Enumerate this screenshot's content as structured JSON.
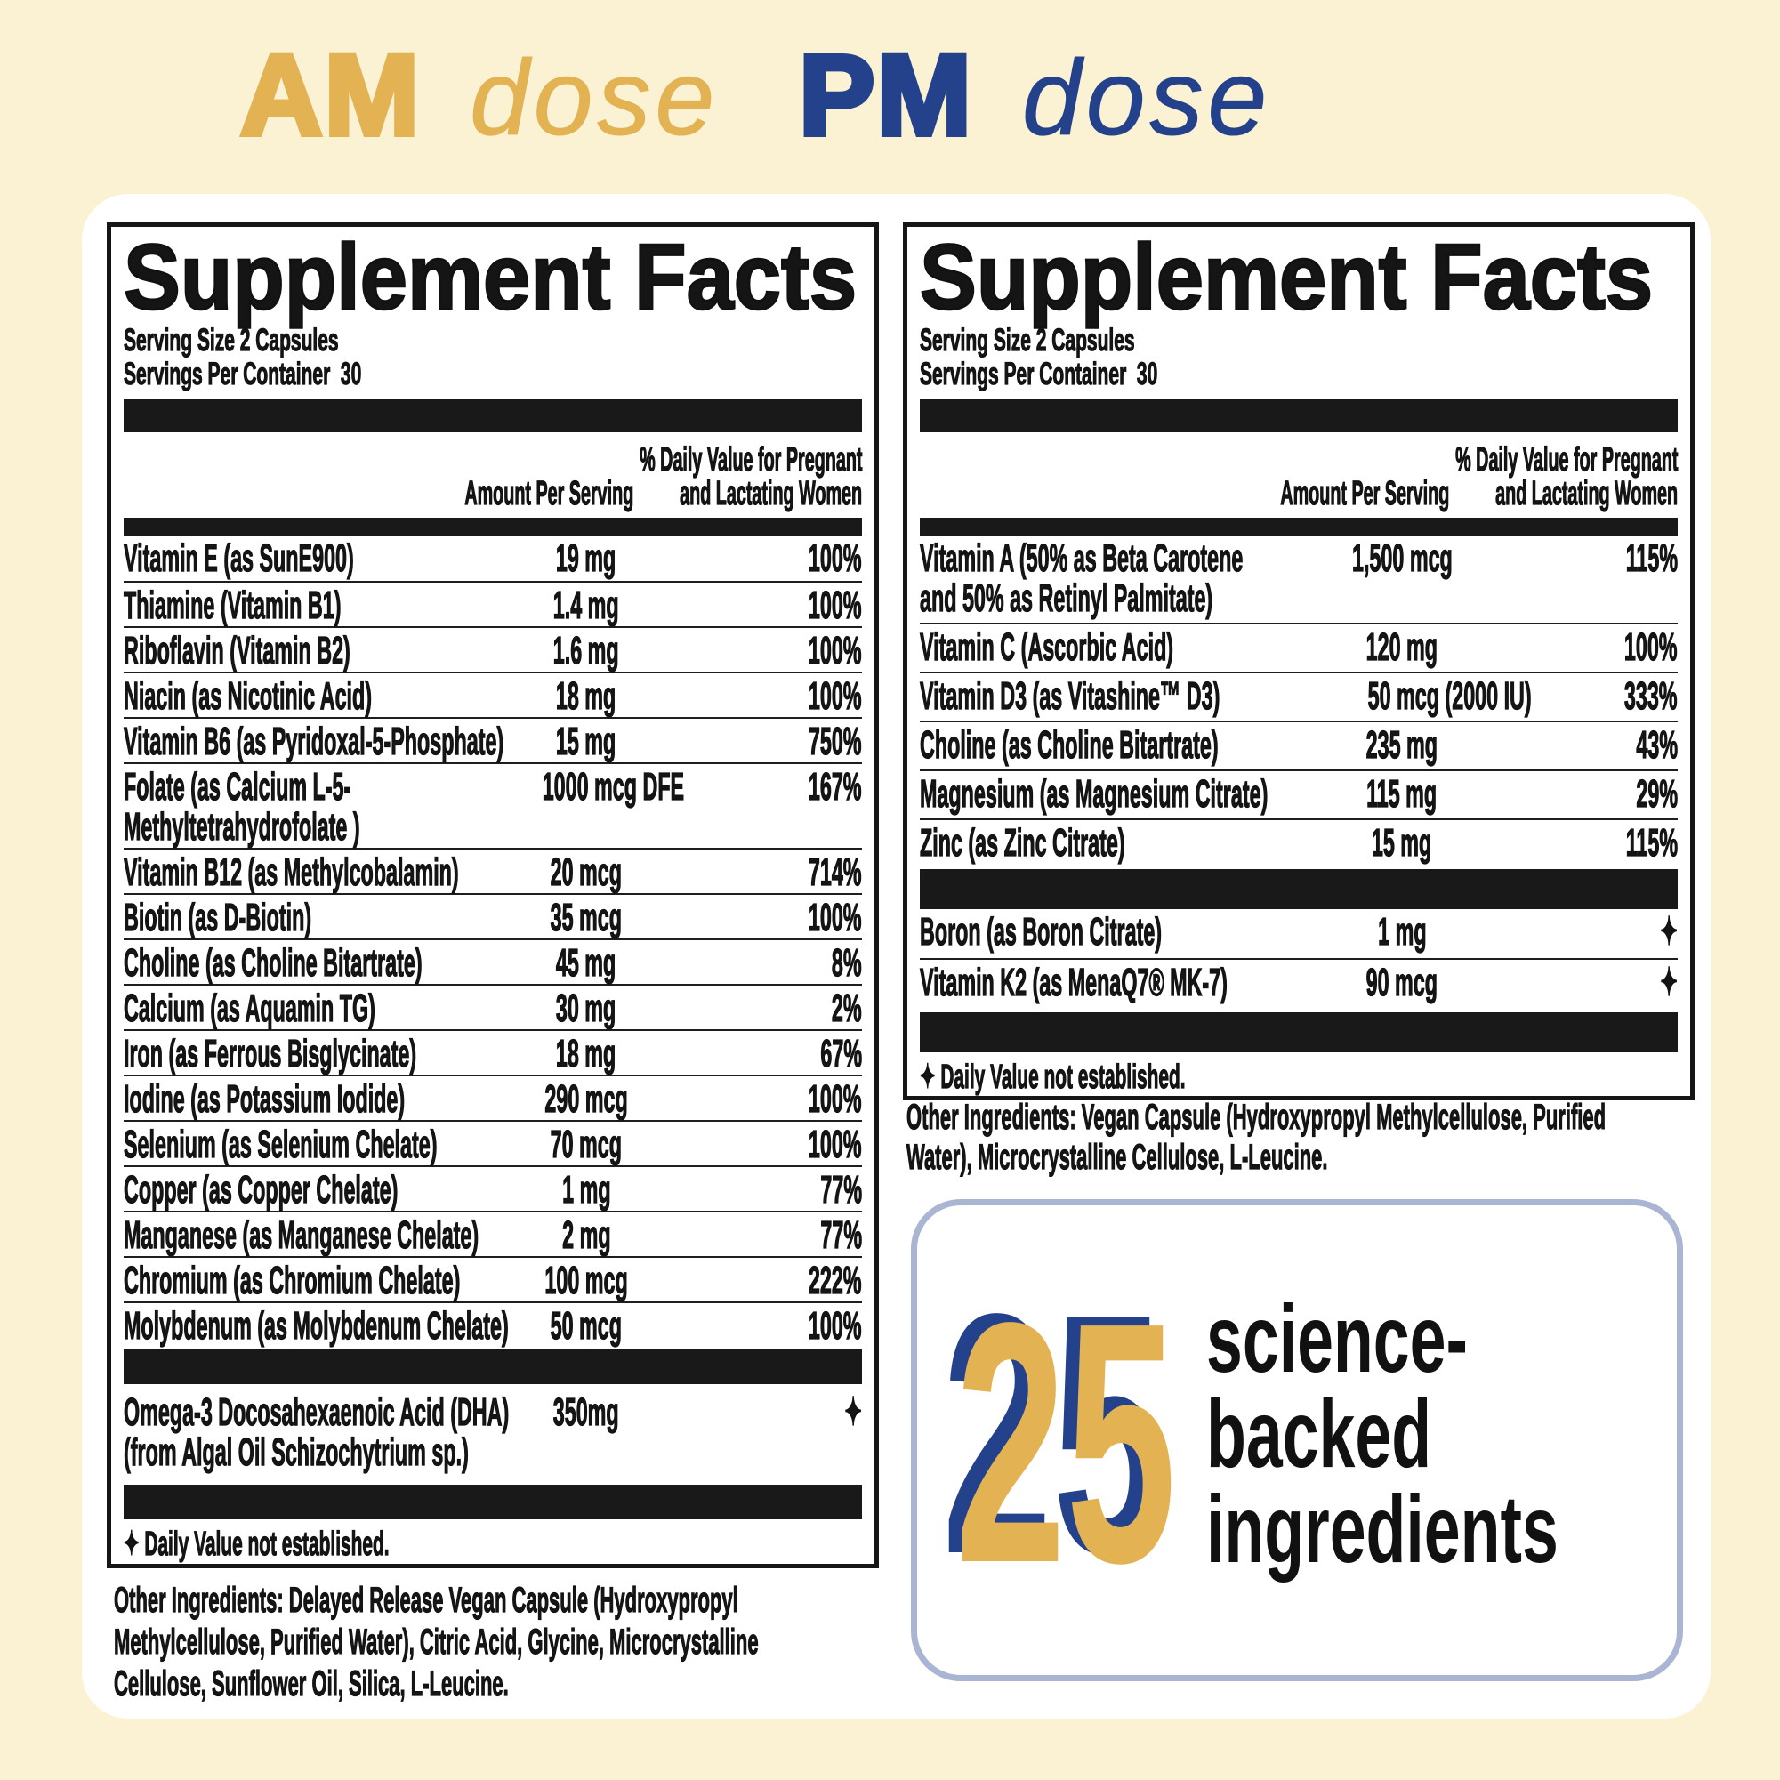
{
  "headers": {
    "am_bold": "AM",
    "am_italic": "dose",
    "pm_bold": "PM",
    "pm_italic": "dose",
    "am_color": "#E2B253",
    "pm_color": "#24418C"
  },
  "panels": {
    "am": {
      "title": "Supplement Facts",
      "serving_line1": "Serving Size 2 Capsules",
      "serving_line2": "Servings Per Container  30",
      "col_amount": "Amount Per Serving",
      "col_dv_line1": "% Daily Value for Pregnant",
      "col_dv_line2": "and Lactating Women",
      "rows": [
        {
          "name": "Vitamin E (as SunE900)",
          "amount": "19 mg",
          "dv": "100%"
        },
        {
          "name": "Thiamine (Vitamin B1)",
          "amount": "1.4 mg",
          "dv": "100%"
        },
        {
          "name": "Riboflavin (Vitamin B2)",
          "amount": "1.6 mg",
          "dv": "100%"
        },
        {
          "name": "Niacin (as Nicotinic Acid)",
          "amount": "18 mg",
          "dv": "100%"
        },
        {
          "name": "Vitamin B6 (as Pyridoxal-5-Phosphate)",
          "amount": "15 mg",
          "dv": "750%"
        },
        {
          "name": "Folate (as Calcium L-5-",
          "name2": "Methyltetrahydrofolate )",
          "amount": "1000 mcg DFE",
          "dv": "167%"
        },
        {
          "name": "Vitamin B12 (as Methylcobalamin)",
          "amount": "20 mcg",
          "dv": "714%"
        },
        {
          "name": "Biotin (as D-Biotin)",
          "amount": "35 mcg",
          "dv": "100%"
        },
        {
          "name": "Choline (as Choline Bitartrate)",
          "amount": "45 mg",
          "dv": "8%"
        },
        {
          "name": "Calcium (as Aquamin TG)",
          "amount": "30 mg",
          "dv": "2%"
        },
        {
          "name": "Iron (as Ferrous Bisglycinate)",
          "amount": "18 mg",
          "dv": "67%"
        },
        {
          "name": "Iodine (as Potassium Iodide)",
          "amount": "290 mcg",
          "dv": "100%"
        },
        {
          "name": "Selenium (as Selenium Chelate)",
          "amount": "70 mcg",
          "dv": "100%"
        },
        {
          "name": "Copper (as Copper Chelate)",
          "amount": "1 mg",
          "dv": "77%"
        },
        {
          "name": "Manganese (as Manganese Chelate)",
          "amount": "2 mg",
          "dv": "77%"
        },
        {
          "name": "Chromium (as Chromium Chelate)",
          "amount": "100 mcg",
          "dv": "222%"
        },
        {
          "name": "Molybdenum (as Molybdenum Chelate)",
          "amount": "50 mcg",
          "dv": "100%"
        }
      ],
      "extra_rows": [
        {
          "name": "Omega-3 Docosahexaenoic Acid (DHA)",
          "name2": "(from Algal Oil Schizochytrium sp.)",
          "amount": "350mg",
          "dv": "✦"
        }
      ],
      "footnote_star": "✦",
      "footnote": "Daily Value not established.",
      "other_ingredients": "Other Ingredients: Delayed Release Vegan Capsule (Hydroxypropyl Methylcellulose, Purified Water), Citric Acid, Glycine, Microcrystalline Cellulose, Sunflower Oil, Silica, L-Leucine."
    },
    "pm": {
      "title": "Supplement Facts",
      "serving_line1": "Serving Size 2 Capsules",
      "serving_line2": "Servings Per Container  30",
      "col_amount": "Amount Per Serving",
      "col_dv_line1": "% Daily Value for Pregnant",
      "col_dv_line2": "and Lactating Women",
      "rows": [
        {
          "name": "Vitamin A (50% as Beta Carotene",
          "name2": "and 50% as Retinyl Palmitate)",
          "amount": "1,500 mcg",
          "dv": "115%"
        },
        {
          "name": "Vitamin C (Ascorbic Acid)",
          "amount": "120 mg",
          "dv": "100%"
        },
        {
          "name": "Vitamin D3 (as Vitashine™ D3)",
          "amount": "50 mcg (2000 IU)",
          "dv": "333%"
        },
        {
          "name": "Choline (as Choline Bitartrate)",
          "amount": "235 mg",
          "dv": "43%"
        },
        {
          "name": "Magnesium (as Magnesium Citrate)",
          "amount": "115 mg",
          "dv": "29%"
        },
        {
          "name": "Zinc (as Zinc Citrate)",
          "amount": "15 mg",
          "dv": "115%"
        }
      ],
      "extra_rows": [
        {
          "name": "Boron (as Boron Citrate)",
          "amount": "1 mg",
          "dv": "✦"
        },
        {
          "name": "Vitamin K2 (as MenaQ7® MK-7)",
          "amount": "90 mcg",
          "dv": "✦"
        }
      ],
      "footnote_star": "✦",
      "footnote": "Daily Value not established.",
      "other_ingredients": "Other Ingredients: Vegan Capsule (Hydroxypropyl Methylcellulose, Purified Water), Microcrystalline Cellulose, L-Leucine."
    }
  },
  "badge": {
    "number": "25",
    "line1": "science-",
    "line2": "backed",
    "line3": "ingredients"
  }
}
